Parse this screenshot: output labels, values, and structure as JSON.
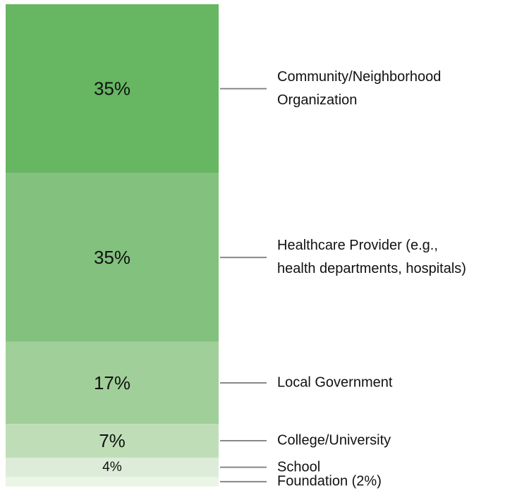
{
  "chart_data": {
    "type": "stacked-bar",
    "categories": [
      "Community/Neighborhood\nOrganization",
      "Healthcare Provider (e.g.,\nhealth departments, hospitals)",
      "Local Government",
      "College/University",
      "School",
      "Foundation (2%)"
    ],
    "values": [
      35,
      35,
      17,
      7,
      4,
      2
    ],
    "value_labels": [
      "35%",
      "35%",
      "17%",
      "7%",
      "4%",
      null
    ],
    "colors": [
      "#66b662",
      "#82c17e",
      "#a1cf99",
      "#bfdeb8",
      "#ddecd8",
      "#eaf4e7"
    ]
  }
}
